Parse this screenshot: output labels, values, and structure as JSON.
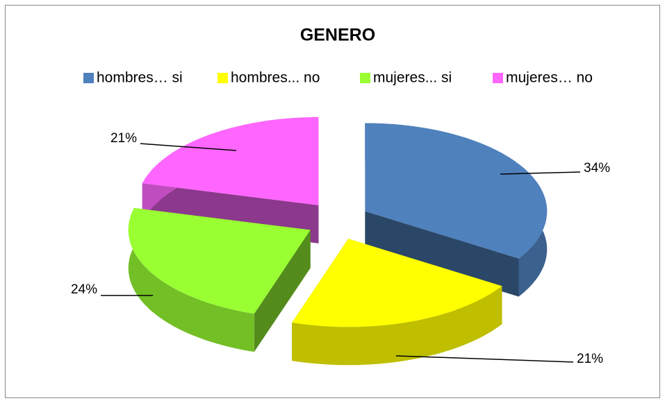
{
  "chart_data": {
    "type": "pie",
    "title": "GENERO",
    "categories": [
      "hombres… si",
      "hombres... no",
      "mujeres... si",
      "mujeres… no"
    ],
    "values": [
      34,
      21,
      24,
      21
    ],
    "value_labels": [
      "34%",
      "21%",
      "24%",
      "21%"
    ],
    "colors": [
      "#4f81bd",
      "#ffff00",
      "#99ff33",
      "#ff66ff"
    ],
    "legend": "top"
  }
}
